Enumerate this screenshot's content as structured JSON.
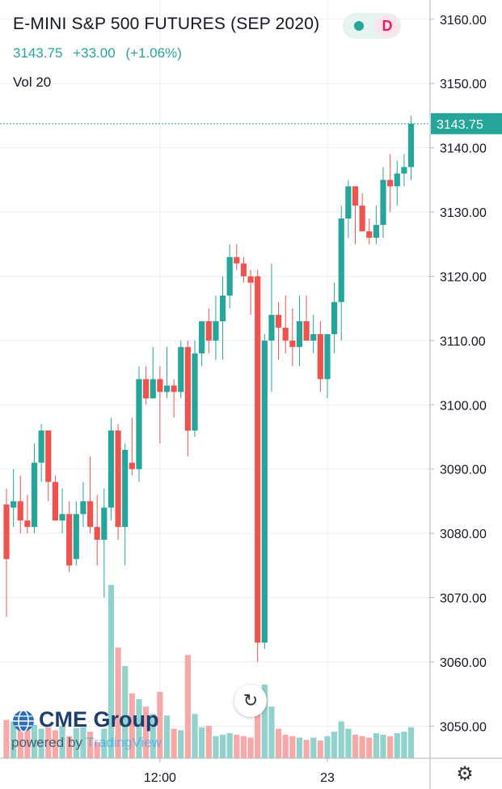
{
  "header": {
    "title": "E-MINI S&P 500 FUTURES (SEP 2020)",
    "last": "3143.75",
    "change": "+33.00",
    "change_pct": "(+1.06%)",
    "volume_label": "Vol 20",
    "status_letter": "D"
  },
  "colors": {
    "up": "#26a69a",
    "down": "#ef5350",
    "up_vol": "#92d2cc",
    "down_vol": "#f7a9a7",
    "grid": "#e0e3eb"
  },
  "logo": {
    "brand": "CME Group",
    "powered_by": "powered by",
    "platform": "TradingView"
  },
  "chart_data": {
    "type": "candlestick",
    "y_axis": {
      "range": [
        3045,
        3163
      ],
      "ticks": [
        "3160.00",
        "3150.00",
        "3140.00",
        "3130.00",
        "3120.00",
        "3110.00",
        "3100.00",
        "3090.00",
        "3080.00",
        "3070.00",
        "3060.00",
        "3050.00"
      ]
    },
    "x_axis": {
      "ticks": [
        {
          "label": "12:00",
          "index": 22
        },
        {
          "label": "23",
          "index": 46
        }
      ]
    },
    "last_price_label": "3143.75",
    "last_price": 3143.75,
    "candles": [
      [
        3084.5,
        3087,
        3067,
        3076
      ],
      [
        3084,
        3090,
        3081,
        3085
      ],
      [
        3085,
        3089,
        3080,
        3082
      ],
      [
        3082,
        3086,
        3080,
        3081
      ],
      [
        3081,
        3094,
        3080,
        3091
      ],
      [
        3091,
        3097,
        3088,
        3096
      ],
      [
        3096,
        3096,
        3085,
        3088
      ],
      [
        3088,
        3089,
        3082,
        3082
      ],
      [
        3082,
        3087,
        3080,
        3083
      ],
      [
        3083,
        3085,
        3074,
        3075
      ],
      [
        3076,
        3085,
        3075,
        3083
      ],
      [
        3083,
        3088,
        3081,
        3085
      ],
      [
        3085,
        3092,
        3080,
        3081
      ],
      [
        3081,
        3086,
        3075,
        3079
      ],
      [
        3079,
        3087,
        3070,
        3084
      ],
      [
        3084,
        3098,
        3082,
        3096
      ],
      [
        3096,
        3097,
        3079,
        3081
      ],
      [
        3081,
        3094,
        3075,
        3093
      ],
      [
        3091,
        3098,
        3089,
        3090
      ],
      [
        3090,
        3106,
        3088,
        3104
      ],
      [
        3104,
        3106,
        3100,
        3101
      ],
      [
        3101,
        3109,
        3101,
        3104
      ],
      [
        3104,
        3106,
        3094,
        3102
      ],
      [
        3102,
        3109,
        3101,
        3103
      ],
      [
        3103,
        3104,
        3098,
        3102
      ],
      [
        3102,
        3110,
        3101,
        3109
      ],
      [
        3109,
        3110,
        3092,
        3096
      ],
      [
        3096,
        3110,
        3095,
        3108
      ],
      [
        3108,
        3113,
        3106,
        3113
      ],
      [
        3113,
        3115,
        3108,
        3110
      ],
      [
        3110,
        3117,
        3107,
        3113
      ],
      [
        3113,
        3120,
        3107,
        3117
      ],
      [
        3117,
        3125,
        3115,
        3123
      ],
      [
        3123,
        3125,
        3121,
        3122
      ],
      [
        3122,
        3123,
        3119,
        3120
      ],
      [
        3120,
        3121,
        3114,
        3119
      ],
      [
        3120,
        3121,
        3060,
        3063
      ],
      [
        3063,
        3111,
        3062,
        3110
      ],
      [
        3110,
        3122,
        3102,
        3114
      ],
      [
        3114,
        3116,
        3107,
        3112
      ],
      [
        3112,
        3117,
        3108,
        3110
      ],
      [
        3110,
        3115,
        3106,
        3109
      ],
      [
        3109,
        3117,
        3106,
        3113
      ],
      [
        3113,
        3117,
        3110,
        3110
      ],
      [
        3110,
        3114,
        3108,
        3111
      ],
      [
        3111,
        3113,
        3102,
        3104
      ],
      [
        3104,
        3111,
        3101,
        3111
      ],
      [
        3111,
        3119,
        3108,
        3116
      ],
      [
        3116,
        3131,
        3110,
        3129
      ],
      [
        3129,
        3135,
        3126,
        3134
      ],
      [
        3134,
        3134,
        3125,
        3131
      ],
      [
        3131,
        3133,
        3127,
        3127
      ],
      [
        3127,
        3129,
        3125,
        3126
      ],
      [
        3126,
        3131,
        3125,
        3128
      ],
      [
        3128,
        3137,
        3126,
        3135
      ],
      [
        3135,
        3139,
        3130,
        3134
      ],
      [
        3134,
        3138,
        3131,
        3136
      ],
      [
        3136,
        3139,
        3134,
        3137
      ],
      [
        3137,
        3145,
        3135,
        3143.75
      ]
    ],
    "volume_max": 260,
    "volume": [
      52,
      50,
      48,
      38,
      45,
      40,
      42,
      38,
      44,
      30,
      41,
      42,
      36,
      22,
      40,
      235,
      150,
      125,
      88,
      80,
      70,
      60,
      90,
      58,
      40,
      38,
      140,
      60,
      42,
      44,
      30,
      32,
      34,
      32,
      30,
      28,
      80,
      100,
      70,
      40,
      32,
      30,
      28,
      25,
      28,
      24,
      30,
      36,
      50,
      40,
      32,
      30,
      28,
      34,
      32,
      30,
      34,
      36,
      42
    ]
  }
}
